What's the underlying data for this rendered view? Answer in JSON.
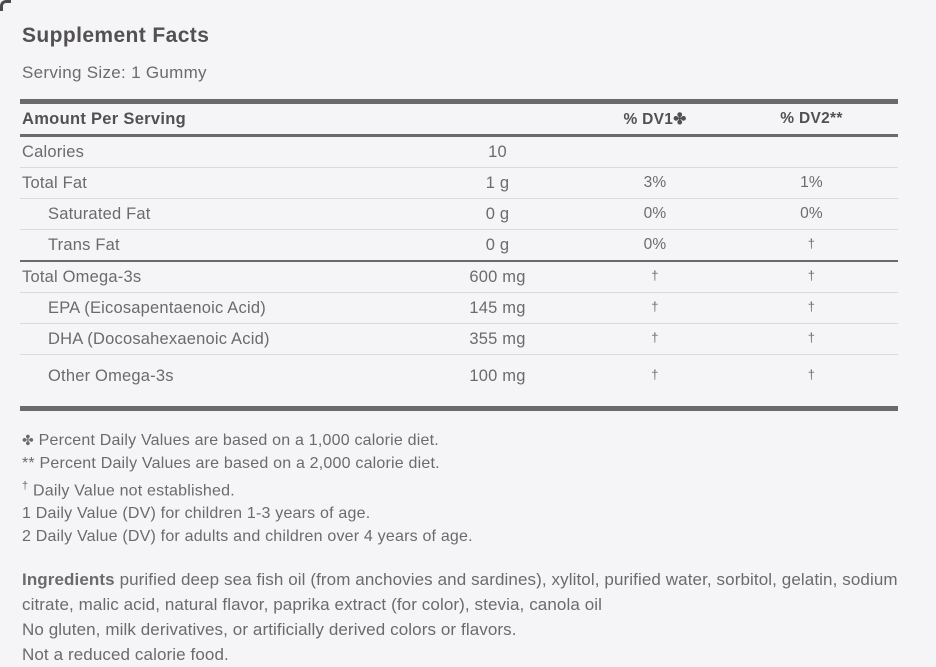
{
  "colors": {
    "bg": "#f5f5f7",
    "heading": "#535052",
    "text": "#6b6a6c",
    "dark": "#6a696b",
    "thin": "#dadade"
  },
  "title": "Supplement Facts",
  "serving_size": "Serving Size: 1 Gummy",
  "table": {
    "headers": {
      "amount": "Amount Per Serving",
      "dv1": "% DV1✤",
      "dv2": "% DV2**"
    },
    "rows": [
      {
        "name": "Calories",
        "amount": "10",
        "dv1": "",
        "dv2": "",
        "indent": false
      },
      {
        "name": "Total Fat",
        "amount": "1 g",
        "dv1": "3%",
        "dv2": "1%",
        "indent": false
      },
      {
        "name": "Saturated Fat",
        "amount": "0 g",
        "dv1": "0%",
        "dv2": "0%",
        "indent": true
      },
      {
        "name": "Trans Fat",
        "amount": "0 g",
        "dv1": "0%",
        "dv2": "†",
        "indent": true
      },
      {
        "name": "Total Omega-3s",
        "amount": "600 mg",
        "dv1": "†",
        "dv2": "†",
        "indent": false
      },
      {
        "name": "EPA (Eicosapentaenoic Acid)",
        "amount": "145 mg",
        "dv1": "†",
        "dv2": "†",
        "indent": true
      },
      {
        "name": "DHA (Docosahexaenoic Acid)",
        "amount": "355 mg",
        "dv1": "†",
        "dv2": "†",
        "indent": true
      },
      {
        "name": "Other Omega-3s",
        "amount": "100 mg",
        "dv1": "†",
        "dv2": "†",
        "indent": true
      }
    ]
  },
  "footnotes": [
    {
      "marker": "✤",
      "text": "Percent Daily Values are based on a 1,000 calorie diet."
    },
    {
      "marker": "**",
      "text": "Percent Daily Values are based on a 2,000 calorie diet."
    },
    {
      "marker": "†",
      "text": "Daily Value not established."
    },
    {
      "marker": "1",
      "text": "Daily Value (DV) for children 1-3 years of age."
    },
    {
      "marker": "2",
      "text": "Daily Value (DV) for adults and children over 4 years of age."
    }
  ],
  "ingredients": {
    "label": "Ingredients",
    "text": "purified deep sea fish oil (from anchovies and sardines), xylitol, purified water, sorbitol, gelatin, sodium citrate, malic acid, natural flavor, paprika extract (for color), stevia, canola oil",
    "note1": "No gluten, milk derivatives, or artificially derived colors or flavors.",
    "note2": "Not a reduced calorie food."
  }
}
